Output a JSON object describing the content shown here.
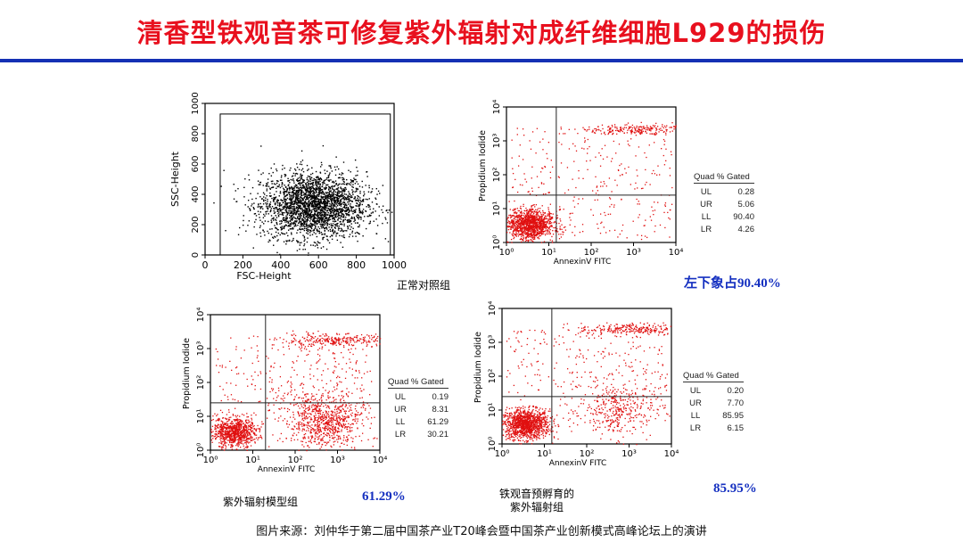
{
  "header": {
    "title": "清香型铁观音茶可修复紫外辐射对成纤维细胞L929的损伤"
  },
  "colors": {
    "title": "#e8101e",
    "rule": "#1430b4",
    "accent_text": "#1530c0",
    "dots_red": "#e01010",
    "dots_black": "#000000"
  },
  "labels": {
    "control_group": "正常对照组",
    "control_pct": "左下象占90.40%",
    "uv_group": "紫外辐射模型组",
    "uv_pct": "61.29%",
    "tea_group_line1": "铁观音预孵育的",
    "tea_group_line2": "紫外辐射组",
    "tea_pct": "85.95%"
  },
  "source": "图片来源：刘仲华于第二届中国茶产业T20峰会暨中国茶产业创新模式高峰论坛上的演讲",
  "chart_data": [
    {
      "type": "scatter",
      "name": "fsc-ssc",
      "xlabel": "FSC-Height",
      "ylabel": "SSC-Height",
      "xlim": [
        0,
        1000
      ],
      "ylim": [
        0,
        1000
      ],
      "xticks": [
        "0",
        "200",
        "400",
        "600",
        "800",
        "1000"
      ],
      "yticks": [
        "0",
        "200",
        "400",
        "600",
        "800",
        "1000"
      ],
      "cluster": {
        "center": [
          570,
          330
        ],
        "spread": [
          140,
          110
        ]
      },
      "color": "#000000"
    },
    {
      "type": "scatter",
      "name": "control",
      "scale": "log",
      "xlabel": "AnnexinV FITC",
      "ylabel": "Propidium Iodide",
      "xlim": [
        1,
        10000
      ],
      "ylim": [
        1,
        10000
      ],
      "tick_labels": [
        "10⁰",
        "10¹",
        "10²",
        "10³",
        "10⁴"
      ],
      "quadrant_gate": {
        "x": 15,
        "y": 25
      },
      "table": {
        "header": "Quad  % Gated",
        "rows": [
          {
            "quad": "UL",
            "value": "0.28"
          },
          {
            "quad": "UR",
            "value": "5.06"
          },
          {
            "quad": "LL",
            "value": "90.40"
          },
          {
            "quad": "LR",
            "value": "4.26"
          }
        ]
      },
      "quadrants": {
        "UL": 0.28,
        "UR": 5.06,
        "LL": 90.4,
        "LR": 4.26
      },
      "color": "#e01010"
    },
    {
      "type": "scatter",
      "name": "uv-model",
      "scale": "log",
      "xlabel": "AnnexinV FITC",
      "ylabel": "Propidium Iodide",
      "xlim": [
        1,
        10000
      ],
      "ylim": [
        1,
        10000
      ],
      "tick_labels": [
        "10⁰",
        "10¹",
        "10²",
        "10³",
        "10⁴"
      ],
      "quadrant_gate": {
        "x": 20,
        "y": 25
      },
      "table": {
        "header": "Quad  % Gated",
        "rows": [
          {
            "quad": "UL",
            "value": "0.19"
          },
          {
            "quad": "UR",
            "value": "8.31"
          },
          {
            "quad": "LL",
            "value": "61.29"
          },
          {
            "quad": "LR",
            "value": "30.21"
          }
        ]
      },
      "quadrants": {
        "UL": 0.19,
        "UR": 8.31,
        "LL": 61.29,
        "LR": 30.21
      },
      "color": "#e01010"
    },
    {
      "type": "scatter",
      "name": "tea-uv",
      "scale": "log",
      "xlabel": "AnnexinV FITC",
      "ylabel": "Propidium Iodide",
      "xlim": [
        1,
        10000
      ],
      "ylim": [
        1,
        10000
      ],
      "tick_labels": [
        "10⁰",
        "10¹",
        "10²",
        "10³",
        "10⁴"
      ],
      "quadrant_gate": {
        "x": 15,
        "y": 25
      },
      "table": {
        "header": "Quad  % Gated",
        "rows": [
          {
            "quad": "UL",
            "value": "0.20"
          },
          {
            "quad": "UR",
            "value": "7.70"
          },
          {
            "quad": "LL",
            "value": "85.95"
          },
          {
            "quad": "LR",
            "value": "6.15"
          }
        ]
      },
      "quadrants": {
        "UL": 0.2,
        "UR": 7.7,
        "LL": 85.95,
        "LR": 6.15
      },
      "color": "#e01010"
    }
  ]
}
